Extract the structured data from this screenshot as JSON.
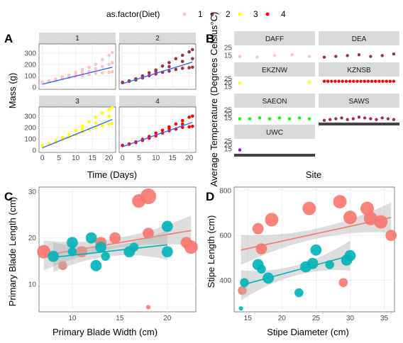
{
  "panel_letters": [
    "A",
    "B",
    "C",
    "D"
  ],
  "colors": {
    "diet": {
      "1": "#ffc0cb",
      "2": "#a0304a",
      "3": "#ffff00",
      "4": "#ff0000"
    },
    "fit_blue": "#3366ff",
    "site_default": "#a52a2a",
    "groupA": "#f8766d",
    "groupB": "#00b3b8",
    "ribbon": "#b3b3b3",
    "strip_bg": "#d9d9d9",
    "grid": "#ebebeb"
  },
  "chart_data": [
    {
      "id": "A",
      "type": "scatter",
      "legend": {
        "title": "as.factor(Diet)",
        "position": "top",
        "entries": [
          "1",
          "2",
          "3",
          "4"
        ]
      },
      "xlabel": "Time (Days)",
      "ylabel": "Mass (g)",
      "xlim": [
        -1,
        22
      ],
      "ylim": [
        -20,
        380
      ],
      "xticks": [
        0,
        5,
        10,
        15,
        20
      ],
      "yticks": [
        0,
        100,
        200,
        300
      ],
      "facets": [
        {
          "label": "1",
          "diet": "1",
          "fit": {
            "x": [
              0,
              21
            ],
            "y": [
              25,
              175
            ]
          },
          "days": [
            0,
            2,
            4,
            6,
            8,
            10,
            12,
            14,
            16,
            18,
            20,
            21
          ],
          "points": [
            [
              0,
              38
            ],
            [
              0,
              42
            ],
            [
              0,
              44
            ],
            [
              2,
              48
            ],
            [
              2,
              55
            ],
            [
              2,
              52
            ],
            [
              4,
              60
            ],
            [
              4,
              70
            ],
            [
              4,
              64
            ],
            [
              6,
              75
            ],
            [
              6,
              90
            ],
            [
              6,
              82
            ],
            [
              8,
              85
            ],
            [
              8,
              105
            ],
            [
              8,
              96
            ],
            [
              10,
              95
            ],
            [
              10,
              130
            ],
            [
              10,
              112
            ],
            [
              12,
              100
            ],
            [
              12,
              155
            ],
            [
              12,
              128
            ],
            [
              14,
              110
            ],
            [
              14,
              175
            ],
            [
              14,
              140
            ],
            [
              16,
              120
            ],
            [
              16,
              200
            ],
            [
              16,
              160
            ],
            [
              18,
              125
            ],
            [
              18,
              240
            ],
            [
              18,
              180
            ],
            [
              20,
              130
            ],
            [
              20,
              280
            ],
            [
              20,
              200
            ],
            [
              21,
              135
            ],
            [
              21,
              305
            ],
            [
              21,
              215
            ]
          ]
        },
        {
          "label": "2",
          "diet": "2",
          "fit": {
            "x": [
              0,
              21
            ],
            "y": [
              30,
              220
            ]
          },
          "points": [
            [
              0,
              38
            ],
            [
              0,
              42
            ],
            [
              2,
              50
            ],
            [
              2,
              55
            ],
            [
              4,
              62
            ],
            [
              4,
              72
            ],
            [
              6,
              80
            ],
            [
              6,
              98
            ],
            [
              8,
              100
            ],
            [
              8,
              125
            ],
            [
              10,
              115
            ],
            [
              10,
              150
            ],
            [
              12,
              130
            ],
            [
              12,
              185
            ],
            [
              14,
              140
            ],
            [
              14,
              215
            ],
            [
              16,
              155
            ],
            [
              16,
              250
            ],
            [
              18,
              165
            ],
            [
              18,
              280
            ],
            [
              20,
              170
            ],
            [
              20,
              310
            ],
            [
              21,
              175
            ],
            [
              21,
              330
            ],
            [
              10,
              135
            ],
            [
              14,
              180
            ],
            [
              18,
              225
            ],
            [
              21,
              250
            ]
          ]
        },
        {
          "label": "3",
          "diet": "3",
          "fit": {
            "x": [
              0,
              21
            ],
            "y": [
              20,
              270
            ]
          },
          "points": [
            [
              0,
              40
            ],
            [
              0,
              42
            ],
            [
              2,
              52
            ],
            [
              2,
              58
            ],
            [
              4,
              68
            ],
            [
              4,
              80
            ],
            [
              6,
              90
            ],
            [
              6,
              110
            ],
            [
              8,
              110
            ],
            [
              8,
              140
            ],
            [
              10,
              135
            ],
            [
              10,
              175
            ],
            [
              12,
              160
            ],
            [
              12,
              210
            ],
            [
              14,
              180
            ],
            [
              14,
              250
            ],
            [
              16,
              200
            ],
            [
              16,
              290
            ],
            [
              18,
              215
            ],
            [
              18,
              330
            ],
            [
              20,
              230
            ],
            [
              20,
              360
            ],
            [
              21,
              235
            ],
            [
              21,
              373
            ],
            [
              12,
              185
            ],
            [
              16,
              240
            ],
            [
              20,
              300
            ]
          ]
        },
        {
          "label": "4",
          "diet": "4",
          "fit": {
            "x": [
              0,
              21
            ],
            "y": [
              30,
              245
            ]
          },
          "points": [
            [
              0,
              40
            ],
            [
              0,
              42
            ],
            [
              2,
              52
            ],
            [
              2,
              55
            ],
            [
              4,
              66
            ],
            [
              4,
              72
            ],
            [
              6,
              85
            ],
            [
              6,
              95
            ],
            [
              8,
              105
            ],
            [
              8,
              120
            ],
            [
              10,
              125
            ],
            [
              10,
              150
            ],
            [
              12,
              150
            ],
            [
              12,
              175
            ],
            [
              14,
              170
            ],
            [
              14,
              205
            ],
            [
              16,
              185
            ],
            [
              16,
              230
            ],
            [
              18,
              200
            ],
            [
              18,
              260
            ],
            [
              20,
              205
            ],
            [
              20,
              290
            ],
            [
              21,
              210
            ],
            [
              21,
              300
            ],
            [
              14,
              190
            ],
            [
              18,
              230
            ]
          ]
        }
      ]
    },
    {
      "id": "B",
      "type": "scatter",
      "xlabel": "Site",
      "ylabel": "Average Temperature (Degrees Celsius°C)",
      "facets": [
        {
          "label": "DAFF",
          "color": "#ffc0cb",
          "y_ticks": [
            "25",
            "15"
          ],
          "values": [
            14,
            13,
            15,
            16,
            14
          ]
        },
        {
          "label": "DEA",
          "color": "#a0304a",
          "y_ticks": [],
          "values": [
            13,
            14,
            15,
            16,
            14,
            15,
            17
          ]
        },
        {
          "label": "EKZNW",
          "color": "#ffff00",
          "y_ticks": [
            "25",
            "20",
            "15"
          ],
          "values": [
            20,
            21
          ]
        },
        {
          "label": "KZNSB",
          "color": "#ff0000",
          "y_ticks": [],
          "values": [
            22,
            22,
            22,
            22,
            22,
            22,
            22,
            22,
            22,
            22,
            22,
            22,
            22,
            22,
            22,
            22,
            22,
            22,
            22,
            22
          ]
        },
        {
          "label": "SAEON",
          "color": "#00ff00",
          "y_ticks": [
            "25",
            "20",
            "15"
          ],
          "values": [
            14,
            14,
            15,
            14,
            15,
            14,
            15,
            14
          ]
        },
        {
          "label": "SAWS",
          "color": "#a0304a",
          "y_ticks": [],
          "values": [
            12,
            13,
            14,
            15,
            13,
            14,
            16,
            15,
            14,
            13,
            15,
            14,
            13
          ]
        },
        {
          "label": "UWC",
          "color": "#9900ff",
          "y_ticks": [
            "25",
            "20",
            "15"
          ],
          "values": [
            14
          ]
        }
      ]
    },
    {
      "id": "C",
      "type": "scatter",
      "xlabel": "Primary Blade Width (cm)",
      "ylabel": "Primary Blade Length (cm)",
      "xlim": [
        6.5,
        23
      ],
      "ylim": [
        4,
        31
      ],
      "xticks": [
        10,
        15,
        20
      ],
      "yticks": [
        10,
        20,
        30
      ],
      "series": [
        {
          "name": "",
          "color": "#f8766d",
          "fit": {
            "x": [
              7,
              22.5
            ],
            "y": [
              16.2,
              21.6
            ]
          },
          "points": [
            [
              7,
              17,
              5
            ],
            [
              9,
              14,
              3
            ],
            [
              11,
              17,
              4
            ],
            [
              13,
              19,
              4
            ],
            [
              14.5,
              20,
              4
            ],
            [
              17,
              28,
              5
            ],
            [
              18,
              29,
              6
            ],
            [
              18,
              21,
              4
            ],
            [
              22,
              19,
              4
            ],
            [
              22.5,
              18,
              5
            ],
            [
              18,
              5,
              1
            ]
          ]
        },
        {
          "name": "",
          "color": "#00b3b8",
          "fit": {
            "x": [
              8,
              20
            ],
            "y": [
              15.8,
              18.5
            ]
          },
          "points": [
            [
              8,
              16,
              4
            ],
            [
              10,
              19,
              4
            ],
            [
              10,
              17,
              3
            ],
            [
              12,
              20,
              4
            ],
            [
              12.5,
              14,
              4
            ],
            [
              13,
              18,
              4
            ],
            [
              13.5,
              16,
              3
            ],
            [
              16,
              17,
              4
            ],
            [
              16.5,
              18,
              3
            ],
            [
              20,
              22.5,
              4
            ],
            [
              20,
              17,
              4
            ]
          ]
        }
      ]
    },
    {
      "id": "D",
      "type": "scatter",
      "xlabel": "Stipe Diameter (cm)",
      "ylabel": "Stipe Length (cm)",
      "xlim": [
        13,
        36.5
      ],
      "ylim": [
        260,
        815
      ],
      "xticks": [
        15,
        20,
        25,
        30,
        35
      ],
      "yticks": [
        400,
        600,
        800
      ],
      "series": [
        {
          "name": "",
          "color": "#f8766d",
          "fit": {
            "x": [
              14,
              36
            ],
            "y": [
              535,
              680
            ]
          },
          "points": [
            [
              14.2,
              355,
              3
            ],
            [
              16.5,
              630,
              4
            ],
            [
              17,
              540,
              4
            ],
            [
              18.5,
              670,
              5
            ],
            [
              24,
              720,
              5
            ],
            [
              28.5,
              750,
              5
            ],
            [
              29,
              390,
              3
            ],
            [
              30,
              680,
              5
            ],
            [
              32.5,
              720,
              5
            ],
            [
              33,
              675,
              5
            ],
            [
              34.5,
              660,
              5
            ],
            [
              36,
              600,
              4
            ]
          ]
        },
        {
          "name": "",
          "color": "#00b3b8",
          "fit": {
            "x": [
              14,
              30
            ],
            "y": [
              378,
              510
            ]
          },
          "points": [
            [
              14,
              275,
              1
            ],
            [
              14.5,
              390,
              3
            ],
            [
              16.5,
              470,
              4
            ],
            [
              17,
              450,
              3
            ],
            [
              18,
              410,
              4
            ],
            [
              22.5,
              345,
              3
            ],
            [
              23.5,
              460,
              4
            ],
            [
              24.5,
              475,
              4
            ],
            [
              25,
              535,
              4
            ],
            [
              27,
              470,
              3
            ],
            [
              29.5,
              490,
              4
            ],
            [
              30,
              510,
              4
            ]
          ]
        }
      ]
    }
  ]
}
